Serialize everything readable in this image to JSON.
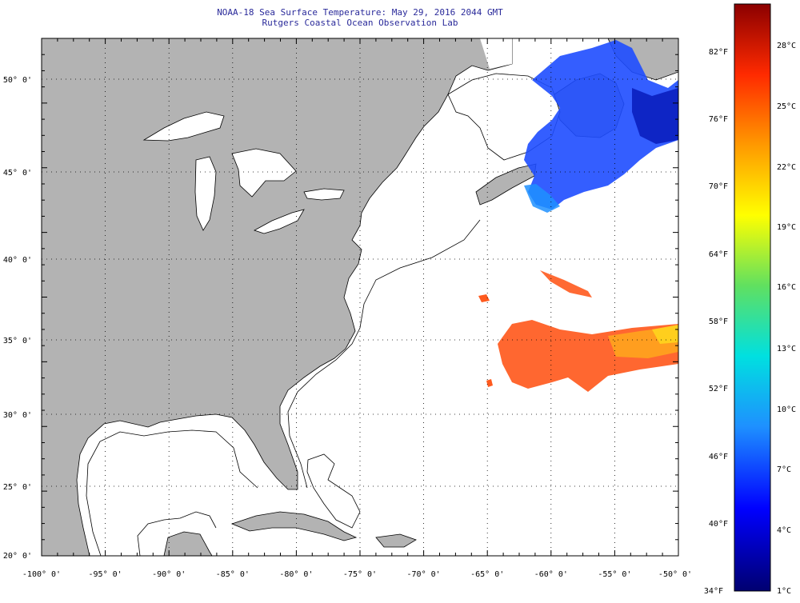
{
  "title": "NOAA-18 Sea Surface Temperature:  May 29, 2016 2044 GMT",
  "subtitle": "Rutgers Coastal Ocean Observation Lab",
  "lon_ticks": [
    "-100° 0'",
    "-95° 0'",
    "-90° 0'",
    "-85° 0'",
    "-80° 0'",
    "-75° 0'",
    "-70° 0'",
    "-65° 0'",
    "-60° 0'",
    "-55° 0'",
    "-50° 0'"
  ],
  "lat_ticks": [
    "50° 0'",
    "45° 0'",
    "40° 0'",
    "35° 0'",
    "30° 0'",
    "25° 0'",
    "20° 0'"
  ],
  "colorbar": {
    "fahrenheit": [
      "82°F",
      "76°F",
      "70°F",
      "64°F",
      "58°F",
      "52°F",
      "46°F",
      "40°F",
      "34°F"
    ],
    "celsius": [
      "28°C",
      "25°C",
      "22°C",
      "19°C",
      "16°C",
      "13°C",
      "10°C",
      "7°C",
      "4°C",
      "1°C"
    ],
    "colors": [
      "#8b0000",
      "#ff2a00",
      "#ff8c00",
      "#ffff00",
      "#80ff40",
      "#00e0e0",
      "#1e90ff",
      "#0000ff",
      "#000080"
    ]
  },
  "colors": {
    "land": "#b3b3b3",
    "ocean": "#ffffff",
    "warm_sst": "#ff5a1e",
    "cold_sst": "#1e4dff"
  }
}
